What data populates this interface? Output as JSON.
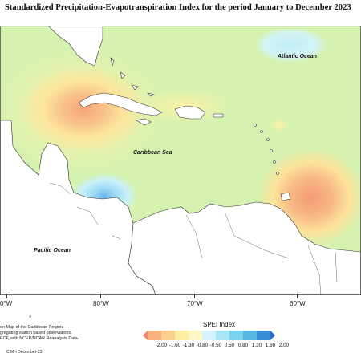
{
  "title": "Standardized Precipitation-Evapotranspiration Index for the period January to December 2023",
  "labels": {
    "atlantic": "Atlantic Ocean",
    "caribbean": "Caribbean Sea",
    "pacific": "Pacific Ocean"
  },
  "longitudes": [
    "0°W",
    "80°W",
    "70°W",
    "60°W"
  ],
  "notes": {
    "marker": "≡",
    "line1": "on Map of the Caribbean Region.",
    "line2": "gregating station based observations.",
    "line3": "ECF, with NCEP/NCAR Reanalysis Data.",
    "credit": "CIMH December-23"
  },
  "legend": {
    "title": "SPEI Index",
    "values": [
      "-2.00",
      "-1.60",
      "-1.30",
      "-0.80",
      "-0.50",
      "0.50",
      "0.80",
      "1.30",
      "1.60",
      "2.00"
    ],
    "colors": [
      "#f08a6a",
      "#f6b07e",
      "#fbd08f",
      "#fdeea0",
      "#fdf7c6",
      "#d6f2ff",
      "#a8e6f4",
      "#79d3ea",
      "#55b7e2",
      "#3a8ed6",
      "#2c6fc8"
    ]
  },
  "colors": {
    "ocean_base": "#d5f2b0",
    "land": "#ffffff",
    "coast": "#333333"
  }
}
